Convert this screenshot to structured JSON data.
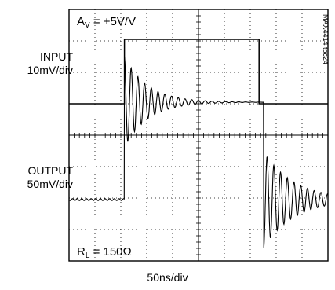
{
  "labels": {
    "input_title": "INPUT",
    "input_scale": "10mV/div",
    "output_title": "OUTPUT",
    "output_scale": "50mV/div",
    "time_scale": "50ns/div",
    "gain_prefix": "A",
    "gain_sub": "V",
    "gain_value": " = +5V/V",
    "rl_prefix": "R",
    "rl_sub": "L",
    "rl_value": " = 150Ω",
    "part_code": "MAX4414 toc24"
  },
  "chart_data": {
    "type": "line",
    "title": "",
    "xlabel": "50ns/div",
    "grid": "dotted 10x8 divisions",
    "x_range_ns": [
      0,
      500
    ],
    "series": [
      {
        "name": "INPUT",
        "scale": "10mV/div",
        "x_ns": [
          0,
          107,
          107,
          367,
          367,
          500
        ],
        "level_div": [
          0,
          0,
          2.05,
          2.05,
          0,
          0
        ]
      },
      {
        "name": "OUTPUT",
        "scale": "50mV/div",
        "low_div": -2.05,
        "high_div": 1.05,
        "rise_ns": 107,
        "fall_ns": 376,
        "overshoot_div": 1.45,
        "ringing_period_ns": 13,
        "ringing_decay_ns": 45
      }
    ]
  }
}
